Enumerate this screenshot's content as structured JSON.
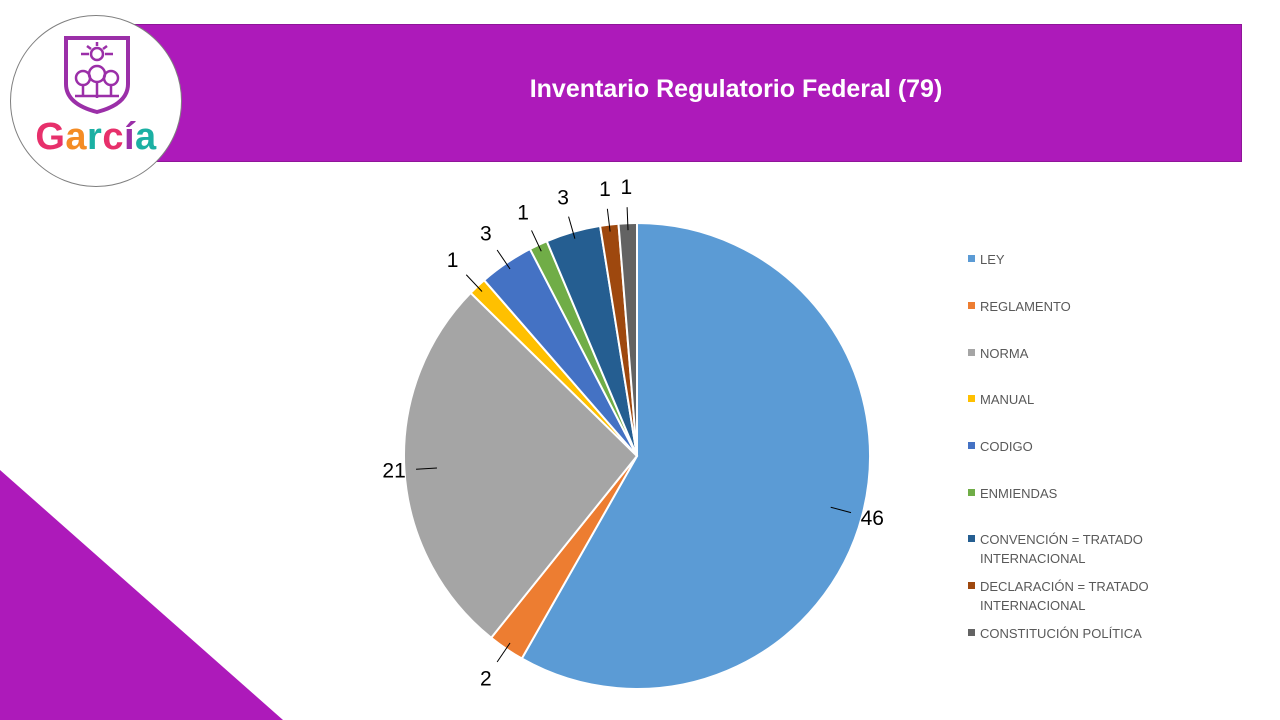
{
  "title": "Inventario Regulatorio Federal (79)",
  "logo": {
    "text": "García"
  },
  "chart_data": {
    "type": "pie",
    "title": "Inventario Regulatorio Federal (79)",
    "categories": [
      "LEY",
      "REGLAMENTO",
      "NORMA",
      "MANUAL",
      "CODIGO",
      "ENMIENDAS",
      "CONVENCIÓN = TRATADO INTERNACIONAL",
      "DECLARACIÓN = TRATADO INTERNACIONAL",
      "CONSTITUCIÓN POLÍTICA"
    ],
    "values": [
      46,
      2,
      21,
      1,
      3,
      1,
      3,
      1,
      1
    ],
    "data_labels": [
      "46",
      "2",
      "21",
      "1",
      "3",
      "1",
      "3",
      "1",
      "1"
    ],
    "colors": [
      "#5B9BD5",
      "#ED7D31",
      "#A5A5A5",
      "#FFC000",
      "#4472C4",
      "#70AD47",
      "#255E91",
      "#9E480E",
      "#636363"
    ],
    "legend_position": "right"
  },
  "colors": {
    "brand": "#AD1ABA"
  }
}
